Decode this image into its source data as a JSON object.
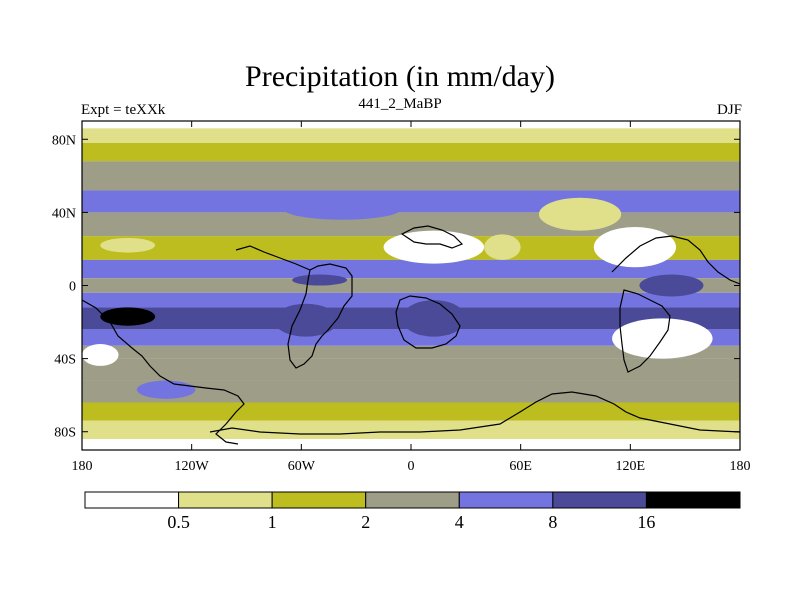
{
  "plot": {
    "title": "Precipitation (in mm/day)",
    "experiment_label": "Expt = teXXk",
    "period_label": "441_2_MaBP",
    "season_label": "DJF"
  },
  "axes": {
    "x_ticks": [
      "180",
      "120W",
      "60W",
      "0",
      "60E",
      "120E",
      "180"
    ],
    "y_ticks": [
      "80N",
      "40N",
      "0",
      "40S",
      "80S"
    ]
  },
  "colorbar": {
    "levels": [
      "0.5",
      "1",
      "2",
      "4",
      "8",
      "16"
    ],
    "colors": [
      "#ffffff",
      "#e0e08a",
      "#bdbd1f",
      "#9d9d88",
      "#7474e0",
      "#4a4a98",
      "#000000"
    ]
  },
  "chart_data": {
    "type": "heatmap",
    "title": "Precipitation (in mm/day)",
    "subtitle": "441_2_MaBP",
    "left_label": "Expt = teXXk",
    "right_label": "DJF",
    "xlabel": "",
    "ylabel": "",
    "xlim": [
      -180,
      180
    ],
    "ylim": [
      -90,
      90
    ],
    "x_tick_values": [
      -180,
      -120,
      -60,
      0,
      60,
      120,
      180
    ],
    "x_tick_labels": [
      "180",
      "120W",
      "60W",
      "0",
      "60E",
      "120E",
      "180"
    ],
    "y_tick_values": [
      80,
      40,
      0,
      -40,
      -80
    ],
    "y_tick_labels": [
      "80N",
      "40N",
      "0",
      "40S",
      "80S"
    ],
    "contour_levels": [
      0.5,
      1,
      2,
      4,
      8,
      16
    ],
    "units": "mm/day",
    "zonal_bands": [
      {
        "lat_top": 90,
        "lat_bottom": 86,
        "value": 0.3
      },
      {
        "lat_top": 86,
        "lat_bottom": 78,
        "value": 0.8
      },
      {
        "lat_top": 78,
        "lat_bottom": 68,
        "value": 1.5
      },
      {
        "lat_top": 68,
        "lat_bottom": 52,
        "value": 3
      },
      {
        "lat_top": 52,
        "lat_bottom": 40,
        "value": 6
      },
      {
        "lat_top": 40,
        "lat_bottom": 27,
        "value": 3
      },
      {
        "lat_top": 27,
        "lat_bottom": 14,
        "value": 1.5
      },
      {
        "lat_top": 14,
        "lat_bottom": 4,
        "value": 6
      },
      {
        "lat_top": 4,
        "lat_bottom": -4,
        "value": 3
      },
      {
        "lat_top": -4,
        "lat_bottom": -12,
        "value": 6
      },
      {
        "lat_top": -12,
        "lat_bottom": -24,
        "value": 10
      },
      {
        "lat_top": -24,
        "lat_bottom": -33,
        "value": 6
      },
      {
        "lat_top": -33,
        "lat_bottom": -40,
        "value": 3
      },
      {
        "lat_top": -40,
        "lat_bottom": -52,
        "value": 3
      },
      {
        "lat_top": -52,
        "lat_bottom": -64,
        "value": 3
      },
      {
        "lat_top": -64,
        "lat_bottom": -74,
        "value": 1.5
      },
      {
        "lat_top": -74,
        "lat_bottom": -84,
        "value": 0.8
      },
      {
        "lat_top": -84,
        "lat_bottom": -90,
        "value": 0.3
      }
    ],
    "regions": [
      {
        "name": "north-pacific-dry",
        "lon": [
          -170,
          -140
        ],
        "lat": [
          26,
          18
        ],
        "value": 0.8
      },
      {
        "name": "north-atlantic-storm",
        "lon": [
          -70,
          -5
        ],
        "lat": [
          48,
          36
        ],
        "value": 6
      },
      {
        "name": "sahara-dry",
        "lon": [
          -15,
          40
        ],
        "lat": [
          30,
          12
        ],
        "value": 0.3
      },
      {
        "name": "arabia-dry",
        "lon": [
          40,
          60
        ],
        "lat": [
          28,
          14
        ],
        "value": 0.8
      },
      {
        "name": "asia-plateau-dry",
        "lon": [
          70,
          115
        ],
        "lat": [
          48,
          30
        ],
        "value": 0.8
      },
      {
        "name": "east-asia-dry",
        "lon": [
          100,
          145
        ],
        "lat": [
          32,
          10
        ],
        "value": 0.3
      },
      {
        "name": "central-america-wet",
        "lon": [
          -65,
          -35
        ],
        "lat": [
          6,
          0
        ],
        "value": 10
      },
      {
        "name": "south-america-wet",
        "lon": [
          -75,
          -40
        ],
        "lat": [
          -10,
          -28
        ],
        "value": 10
      },
      {
        "name": "africa-wet",
        "lon": [
          -5,
          30
        ],
        "lat": [
          -8,
          -28
        ],
        "value": 10
      },
      {
        "name": "west-pacific-wet",
        "lon": [
          125,
          160
        ],
        "lat": [
          6,
          -6
        ],
        "value": 10
      },
      {
        "name": "australia-dry",
        "lon": [
          110,
          165
        ],
        "lat": [
          -18,
          -40
        ],
        "value": 0.3
      },
      {
        "name": "south-pacific-wet",
        "lon": [
          -170,
          -140
        ],
        "lat": [
          -12,
          -22
        ],
        "value": 20
      },
      {
        "name": "south-pacific-dry",
        "lon": [
          -150,
          -118
        ],
        "lat": [
          -52,
          -62
        ],
        "value": 6
      },
      {
        "name": "east-pacific-dry",
        "lon": [
          -180,
          -160
        ],
        "lat": [
          -32,
          -44
        ],
        "value": 0.3
      }
    ]
  }
}
